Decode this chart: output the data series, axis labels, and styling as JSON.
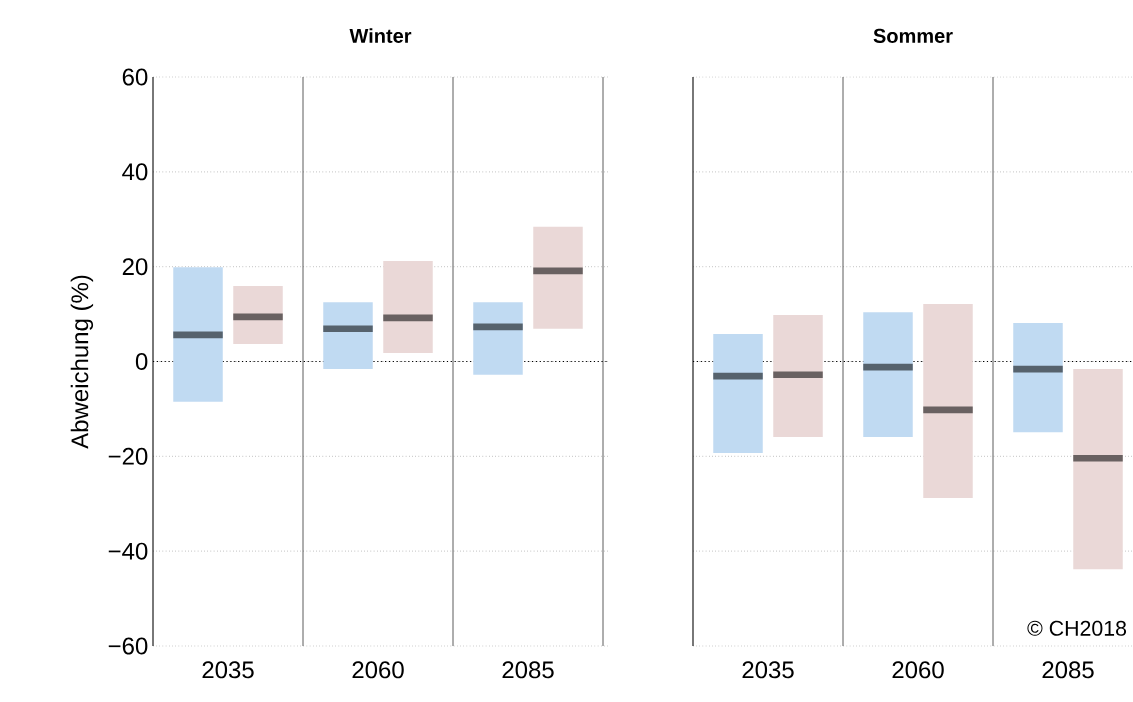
{
  "chart_data": [
    {
      "type": "box",
      "title": "Winter",
      "ylabel": "Abweichung (%)",
      "categories": [
        "2035",
        "2060",
        "2085"
      ],
      "ylim": [
        -60,
        60
      ],
      "yticks": [
        {
          "value": -60,
          "label": "−60"
        },
        {
          "value": -40,
          "label": "−40"
        },
        {
          "value": -20,
          "label": "−20"
        },
        0,
        20,
        40,
        60
      ],
      "grid": "y",
      "ref_lines": [
        {
          "axis": "y",
          "value": 0,
          "color": "#000000",
          "line_style": "dotted"
        }
      ],
      "series": [
        {
          "color": "#c0daf2",
          "boxes": [
            {
              "low": -8.5,
              "q1": -8.5,
              "median": 5.6,
              "q3": 19.9,
              "high": 19.9
            },
            {
              "low": -1.6,
              "q1": -1.6,
              "median": 6.9,
              "q3": 12.5,
              "high": 12.5
            },
            {
              "low": -2.8,
              "q1": -2.8,
              "median": 7.3,
              "q3": 12.5,
              "high": 12.5
            }
          ]
        },
        {
          "color": "#ead8d7",
          "boxes": [
            {
              "low": 3.7,
              "q1": 3.7,
              "median": 9.4,
              "q3": 15.9,
              "high": 15.9
            },
            {
              "low": 1.8,
              "q1": 1.8,
              "median": 9.2,
              "q3": 21.2,
              "high": 21.2
            },
            {
              "low": 6.9,
              "q1": 6.9,
              "median": 19.1,
              "q3": 28.4,
              "high": 28.4
            }
          ]
        }
      ]
    },
    {
      "type": "box",
      "title": "Sommer",
      "categories": [
        "2035",
        "2060",
        "2085"
      ],
      "ylim": [
        -60,
        60
      ],
      "yticks": [
        {
          "value": -60,
          "label": null
        },
        {
          "value": -40,
          "label": null
        },
        {
          "value": -20,
          "label": null
        },
        {
          "value": 0,
          "label": null
        },
        {
          "value": 20,
          "label": null
        },
        {
          "value": 40,
          "label": null
        },
        {
          "value": 60,
          "label": null
        }
      ],
      "grid": "y",
      "tick_labels": "x",
      "ref_lines": [
        {
          "axis": "y",
          "value": 0,
          "color": "#000000",
          "line_style": "dotted"
        }
      ],
      "annotations": [
        "© CH2018"
      ],
      "series": [
        {
          "color": "#c0daf2",
          "boxes": [
            {
              "low": -19.3,
              "q1": -19.3,
              "median": -3.1,
              "q3": 5.8,
              "high": 5.8
            },
            {
              "low": -15.9,
              "q1": -15.9,
              "median": -1.2,
              "q3": 10.4,
              "high": 10.4
            },
            {
              "low": -14.9,
              "q1": -14.9,
              "median": -1.6,
              "q3": 8.1,
              "high": 8.1
            }
          ]
        },
        {
          "color": "#ead8d7",
          "boxes": [
            {
              "low": -15.9,
              "q1": -15.9,
              "median": -2.8,
              "q3": 9.8,
              "high": 9.8
            },
            {
              "low": -28.8,
              "q1": -28.8,
              "median": -10.2,
              "q3": 12.1,
              "high": 12.1
            },
            {
              "low": -43.8,
              "q1": -43.8,
              "median": -20.4,
              "q3": -1.6,
              "high": -1.6
            }
          ]
        }
      ]
    }
  ]
}
